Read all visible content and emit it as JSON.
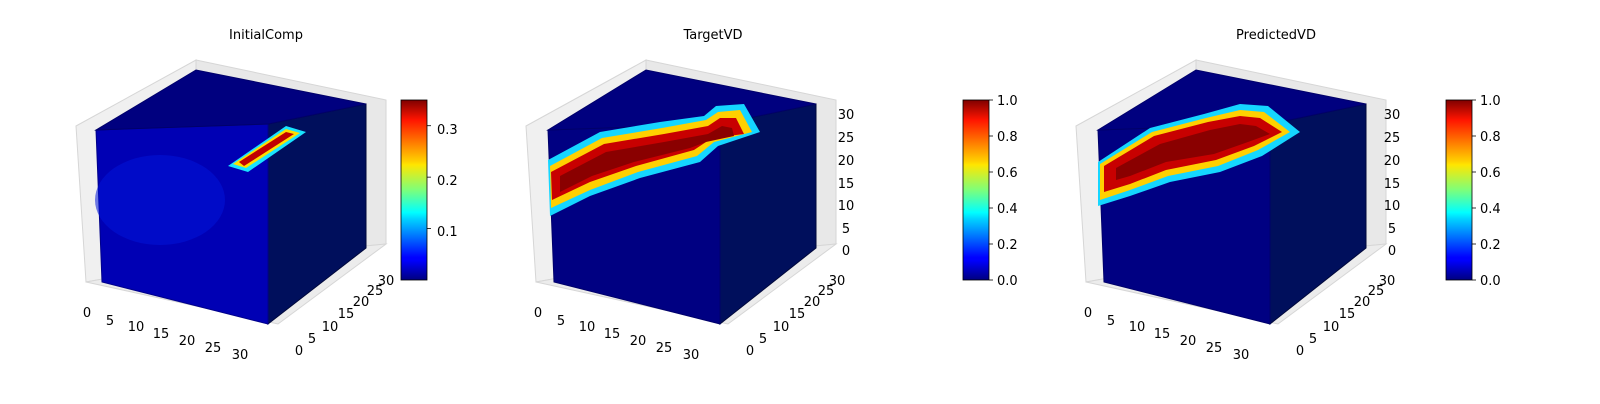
{
  "colormap": "jet",
  "chart_data": [
    {
      "type": "voxel-3d",
      "title": "InitialComp",
      "x_ticks": [
        "0",
        "5",
        "10",
        "15",
        "20",
        "25",
        "30"
      ],
      "y_ticks": [
        "0",
        "5",
        "10",
        "15",
        "20",
        "25",
        "30"
      ],
      "z_ticks": [],
      "xlim": [
        0,
        32
      ],
      "ylim": [
        0,
        32
      ],
      "zlim": [
        0,
        32
      ],
      "colorbar": {
        "range": [
          0.0,
          0.35
        ],
        "ticks": [
          "0.1",
          "0.2",
          "0.3"
        ],
        "values": [
          0.1,
          0.2,
          0.3
        ]
      }
    },
    {
      "type": "voxel-3d",
      "title": "TargetVD",
      "x_ticks": [
        "0",
        "5",
        "10",
        "15",
        "20",
        "25",
        "30"
      ],
      "y_ticks": [
        "0",
        "5",
        "10",
        "15",
        "20",
        "25",
        "30"
      ],
      "z_ticks": [
        "0",
        "5",
        "10",
        "15",
        "20",
        "25",
        "30"
      ],
      "xlim": [
        0,
        32
      ],
      "ylim": [
        0,
        32
      ],
      "zlim": [
        0,
        32
      ],
      "colorbar": {
        "range": [
          0.0,
          1.0
        ],
        "ticks": [
          "0.0",
          "0.2",
          "0.4",
          "0.6",
          "0.8",
          "1.0"
        ],
        "values": [
          0.0,
          0.2,
          0.4,
          0.6,
          0.8,
          1.0
        ]
      }
    },
    {
      "type": "voxel-3d",
      "title": "PredictedVD",
      "x_ticks": [
        "0",
        "5",
        "10",
        "15",
        "20",
        "25",
        "30"
      ],
      "y_ticks": [
        "0",
        "5",
        "10",
        "15",
        "20",
        "25",
        "30"
      ],
      "z_ticks": [
        "0",
        "5",
        "10",
        "15",
        "20",
        "25",
        "30"
      ],
      "xlim": [
        0,
        32
      ],
      "ylim": [
        0,
        32
      ],
      "zlim": [
        0,
        32
      ],
      "colorbar": {
        "range": [
          0.0,
          1.0
        ],
        "ticks": [
          "0.0",
          "0.2",
          "0.4",
          "0.6",
          "0.8",
          "1.0"
        ],
        "values": [
          0.0,
          0.2,
          0.4,
          0.6,
          0.8,
          1.0
        ]
      }
    }
  ]
}
